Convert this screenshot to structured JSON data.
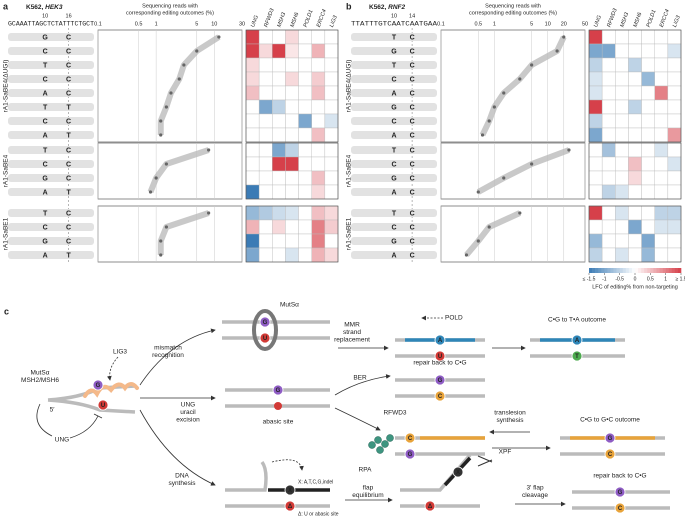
{
  "genes": [
    {
      "name": "UNG",
      "color": "#1f8f8a"
    },
    {
      "name": "RFWD3",
      "color": "#3c9a3c"
    },
    {
      "name": "MSH3",
      "color": "#c8302e"
    },
    {
      "name": "MSH6",
      "color": "#e4613f"
    },
    {
      "name": "POLD1",
      "color": "#e59a22"
    },
    {
      "name": "ERCC4",
      "color": "#8a5cc0"
    },
    {
      "name": "LIG3",
      "color": "#999999"
    }
  ],
  "base_colors": {
    "G": "#e8a33a",
    "T": "#3a7cc0",
    "A": "#8a5cc0",
    "C": "#222222"
  },
  "heat_colors": {
    "low": "#3b7bb5",
    "high": "#d6404a"
  },
  "panel_a": {
    "letter": "a",
    "cell": "K562, ",
    "gene": "HEK3",
    "positions": [
      10,
      16
    ],
    "sequence": "GCAAATTAGCTCTATTTCTGCT",
    "axis_title": [
      "Sequencing reads with",
      "corresponding editing outcomes (%)"
    ],
    "xlim": [
      0.1,
      30
    ],
    "xticks": [
      0.1,
      0.5,
      1,
      5,
      10,
      30
    ],
    "log": true,
    "blocks": [
      {
        "label": "rA1-SaBE4(ΔUGI)",
        "bases": [
          [
            "G",
            "C"
          ],
          [
            "C",
            "C"
          ],
          [
            "T",
            "C"
          ],
          [
            "C",
            "C"
          ],
          [
            "A",
            "C"
          ],
          [
            "T",
            "T"
          ],
          [
            "C",
            "C"
          ],
          [
            "A",
            "T"
          ]
        ],
        "median": [
          12,
          5,
          3,
          2.5,
          1.8,
          1.5,
          1.2,
          1.2
        ],
        "lfc": [
          [
            1.5,
            0,
            0,
            0.3,
            0,
            0,
            0
          ],
          [
            1.5,
            0.3,
            1.5,
            0.2,
            0,
            0.6,
            0
          ],
          [
            0.3,
            0,
            0,
            0,
            0,
            0,
            0
          ],
          [
            0.3,
            0,
            0,
            0.3,
            0,
            0.4,
            0
          ],
          [
            0.5,
            0,
            0,
            0,
            0,
            0.5,
            0
          ],
          [
            0,
            -1,
            -0.5,
            0,
            0,
            0,
            0
          ],
          [
            0,
            0,
            0,
            0,
            -1,
            0,
            -0.3
          ],
          [
            0,
            0,
            0,
            0,
            0,
            0.5,
            0
          ]
        ]
      },
      {
        "label": "rA1-SaBE4",
        "bases": [
          [
            "T",
            "C"
          ],
          [
            "C",
            "C"
          ],
          [
            "G",
            "C"
          ],
          [
            "A",
            "T"
          ]
        ],
        "median": [
          8,
          1.5,
          1,
          0.8
        ],
        "lfc": [
          [
            0,
            0,
            -1,
            -0.5,
            0,
            0,
            0
          ],
          [
            0,
            0,
            1.5,
            1.5,
            0,
            0,
            0
          ],
          [
            0,
            0,
            0,
            0,
            0,
            0.5,
            0
          ],
          [
            -1.5,
            0,
            0,
            0,
            0,
            0.3,
            0
          ]
        ]
      },
      {
        "label": "rA1-SaBE1",
        "bases": [
          [
            "T",
            "C"
          ],
          [
            "C",
            "C"
          ],
          [
            "G",
            "C"
          ],
          [
            "A",
            "T"
          ]
        ],
        "median": [
          8,
          1.5,
          1.2,
          1.2
        ],
        "lfc": [
          [
            -0.8,
            -0.6,
            -0.4,
            -0.3,
            0,
            0.5,
            0.3
          ],
          [
            0.6,
            0,
            0.3,
            0,
            0,
            1,
            0.4
          ],
          [
            -1.5,
            0,
            0,
            0,
            0,
            1,
            0
          ],
          [
            -1,
            0,
            0,
            -0.3,
            0,
            0.6,
            0.3
          ]
        ]
      }
    ]
  },
  "panel_b": {
    "letter": "b",
    "cell": "K562, ",
    "gene": "RNF2",
    "positions": [
      10,
      14
    ],
    "sequence": "TTATTTGTCAATCAATGAA",
    "axis_title": [
      "Sequencing reads with",
      "corresponding editing outcomes (%)"
    ],
    "xlim": [
      0.1,
      50
    ],
    "xticks": [
      0.1,
      0.5,
      1,
      5,
      10,
      20,
      50
    ],
    "log": true,
    "blocks": [
      {
        "label": "rA1-SaBE4(ΔUGI)",
        "bases": [
          [
            "T",
            "C"
          ],
          [
            "G",
            "C"
          ],
          [
            "T",
            "C"
          ],
          [
            "C",
            "C"
          ],
          [
            "A",
            "C"
          ],
          [
            "G",
            "C"
          ],
          [
            "C",
            "C"
          ],
          [
            "A",
            "C"
          ]
        ],
        "median": [
          20,
          15,
          5,
          3,
          1.5,
          1,
          0.8,
          0.6
        ],
        "lfc": [
          [
            1.5,
            0,
            0,
            0,
            0,
            0,
            0
          ],
          [
            -1,
            -1,
            0,
            0,
            0,
            0,
            -0.3
          ],
          [
            -0.5,
            0,
            0,
            -0.5,
            0,
            0,
            0
          ],
          [
            -0.3,
            0,
            0,
            0,
            -0.8,
            0,
            0
          ],
          [
            -0.3,
            0,
            0,
            0,
            0,
            1,
            0
          ],
          [
            1.5,
            0,
            0,
            -0.5,
            0,
            0,
            0
          ],
          [
            -0.5,
            0,
            0,
            0,
            0,
            0,
            0
          ],
          [
            -1,
            0,
            0,
            0,
            0,
            0,
            0.8
          ]
        ]
      },
      {
        "label": "rA1-SaBE4",
        "bases": [
          [
            "T",
            "C"
          ],
          [
            "C",
            "C"
          ],
          [
            "G",
            "C"
          ],
          [
            "A",
            "C"
          ]
        ],
        "median": [
          25,
          5,
          1.5,
          0.5
        ],
        "lfc": [
          [
            0,
            -0.7,
            0,
            0,
            0,
            -0.3,
            0
          ],
          [
            0,
            0,
            0,
            0.5,
            0,
            0,
            -0.3
          ],
          [
            0,
            0,
            0,
            0.3,
            0,
            0,
            0
          ],
          [
            0,
            -0.5,
            -0.3,
            0,
            0,
            0,
            0
          ]
        ]
      },
      {
        "label": "rA1-SaBE1",
        "bases": [
          [
            "T",
            "C"
          ],
          [
            "C",
            "C"
          ],
          [
            "G",
            "C"
          ],
          [
            "A",
            "C"
          ]
        ],
        "median": [
          3,
          0.8,
          0.5,
          0.3
        ],
        "lfc": [
          [
            1.5,
            0,
            -0.3,
            0,
            0,
            -0.5,
            -0.5
          ],
          [
            0,
            0,
            0,
            -1,
            0,
            -0.3,
            -0.3
          ],
          [
            -0.8,
            0,
            0,
            0,
            -1,
            0,
            0
          ],
          [
            -0.5,
            0,
            -0.3,
            0,
            -0.8,
            0,
            0
          ]
        ]
      }
    ]
  },
  "legend": {
    "title": "LFC of editing% from non-targeting",
    "ticks": [
      {
        "value": -1.5,
        "label": "≤ -1.5"
      },
      -1,
      -0.5,
      0,
      0.5,
      1,
      {
        "value": 1.5,
        "label": "≥ 1.5"
      }
    ]
  },
  "panel_c": {
    "letter": "c",
    "circle_letters": [
      "G",
      "U",
      "A",
      "T",
      "C",
      "X",
      "Δ"
    ],
    "mutsa": "MutSα",
    "mutsa_left": [
      "MutSα",
      "MSH2/MSH6"
    ],
    "lig3": "LIG3",
    "five": "5′",
    "ung": "UNG",
    "pold": "POLD",
    "mismatch": [
      "mismatch",
      "recognition"
    ],
    "mmr": [
      "MMR",
      "strand",
      "replacement"
    ],
    "ct_outcome": "C•G to T•A outcome",
    "ung_excision": [
      "UNG",
      "uracil",
      "excision"
    ],
    "abasic": "abasic site",
    "ber": "BER",
    "repair1": "repair back to C•G",
    "rfwd3": "RFWD3",
    "tls": [
      "translesion",
      "synthesis"
    ],
    "cg_outcome": "C•G to G•C outcome",
    "rpa": "RPA",
    "dna_synth": [
      "DNA",
      "synthesis"
    ],
    "x_note": "X: A,T,C,G,indel",
    "d_note": "Δ: U or abasic site",
    "flap": [
      "flap",
      "equilibrium"
    ],
    "xpf": "XPF",
    "cleave": [
      "3′ flap",
      "cleavage"
    ],
    "repair2": "repair back to C•G"
  }
}
